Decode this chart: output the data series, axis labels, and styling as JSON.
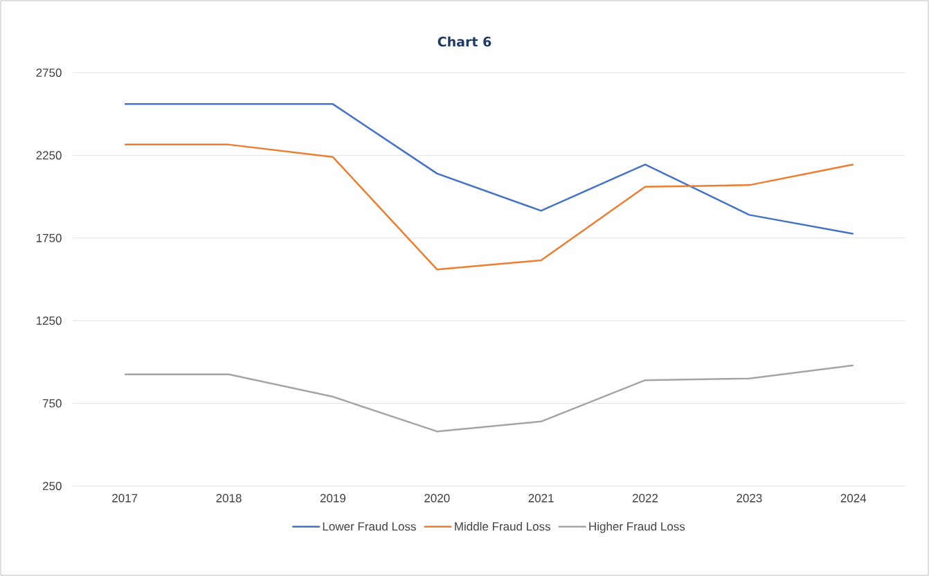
{
  "chart_data": {
    "type": "line",
    "title": "Chart 6",
    "categories": [
      "2017",
      "2018",
      "2019",
      "2020",
      "2021",
      "2022",
      "2023",
      "2024"
    ],
    "series": [
      {
        "name": "Lower Fraud Loss",
        "color": "#4472c4",
        "values": [
          2560,
          2560,
          2560,
          2140,
          1915,
          2195,
          1890,
          1775
        ]
      },
      {
        "name": "Middle Fraud Loss",
        "color": "#ed7d31",
        "values": [
          2315,
          2315,
          2240,
          1560,
          1615,
          2060,
          2070,
          2195
        ]
      },
      {
        "name": "Higher Fraud Loss",
        "color": "#a5a5a5",
        "values": [
          925,
          925,
          790,
          580,
          640,
          890,
          900,
          980
        ]
      }
    ],
    "ylim": [
      250,
      2750
    ],
    "yticks": [
      250,
      750,
      1250,
      1750,
      2250,
      2750
    ],
    "grid": "y",
    "legend": "bottom",
    "marker": "none",
    "line_style": "solid"
  }
}
